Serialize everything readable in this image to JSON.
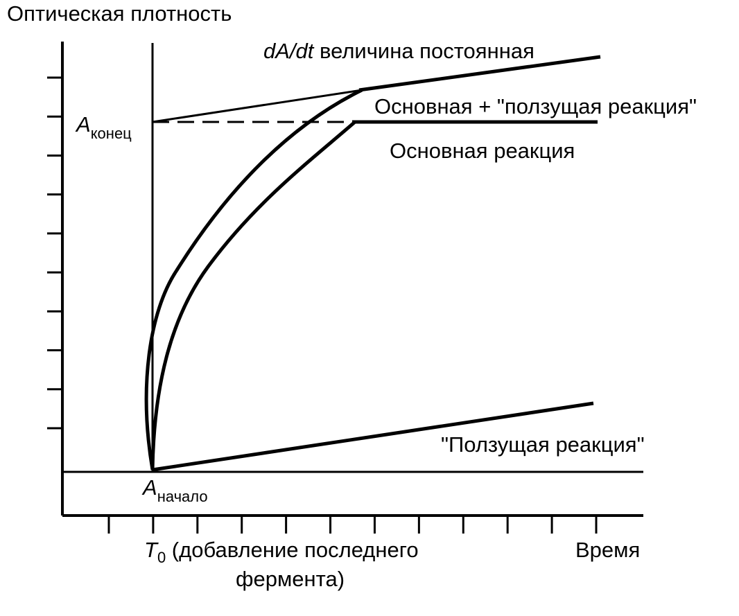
{
  "diagram": {
    "y_axis_title": "Оптическая плотность",
    "x_axis_title": "Время",
    "rate_prefix": "dA/dt",
    "rate_suffix": " величина постоянная",
    "combined_label": "Основная + \"ползущая реакция\"",
    "main_label": "Основная реакция",
    "creep_label": "\"Ползущая реакция\"",
    "a_end_symbol": "A",
    "a_end_sub": "конец",
    "a_start_symbol": "A",
    "a_start_sub": "начало",
    "t0_symbol": "T",
    "t0_sub": "0",
    "t0_text_1": " (добавление последнего",
    "t0_text_2": "фермента)",
    "y_tick_count": 10,
    "x_tick_count": 12
  }
}
